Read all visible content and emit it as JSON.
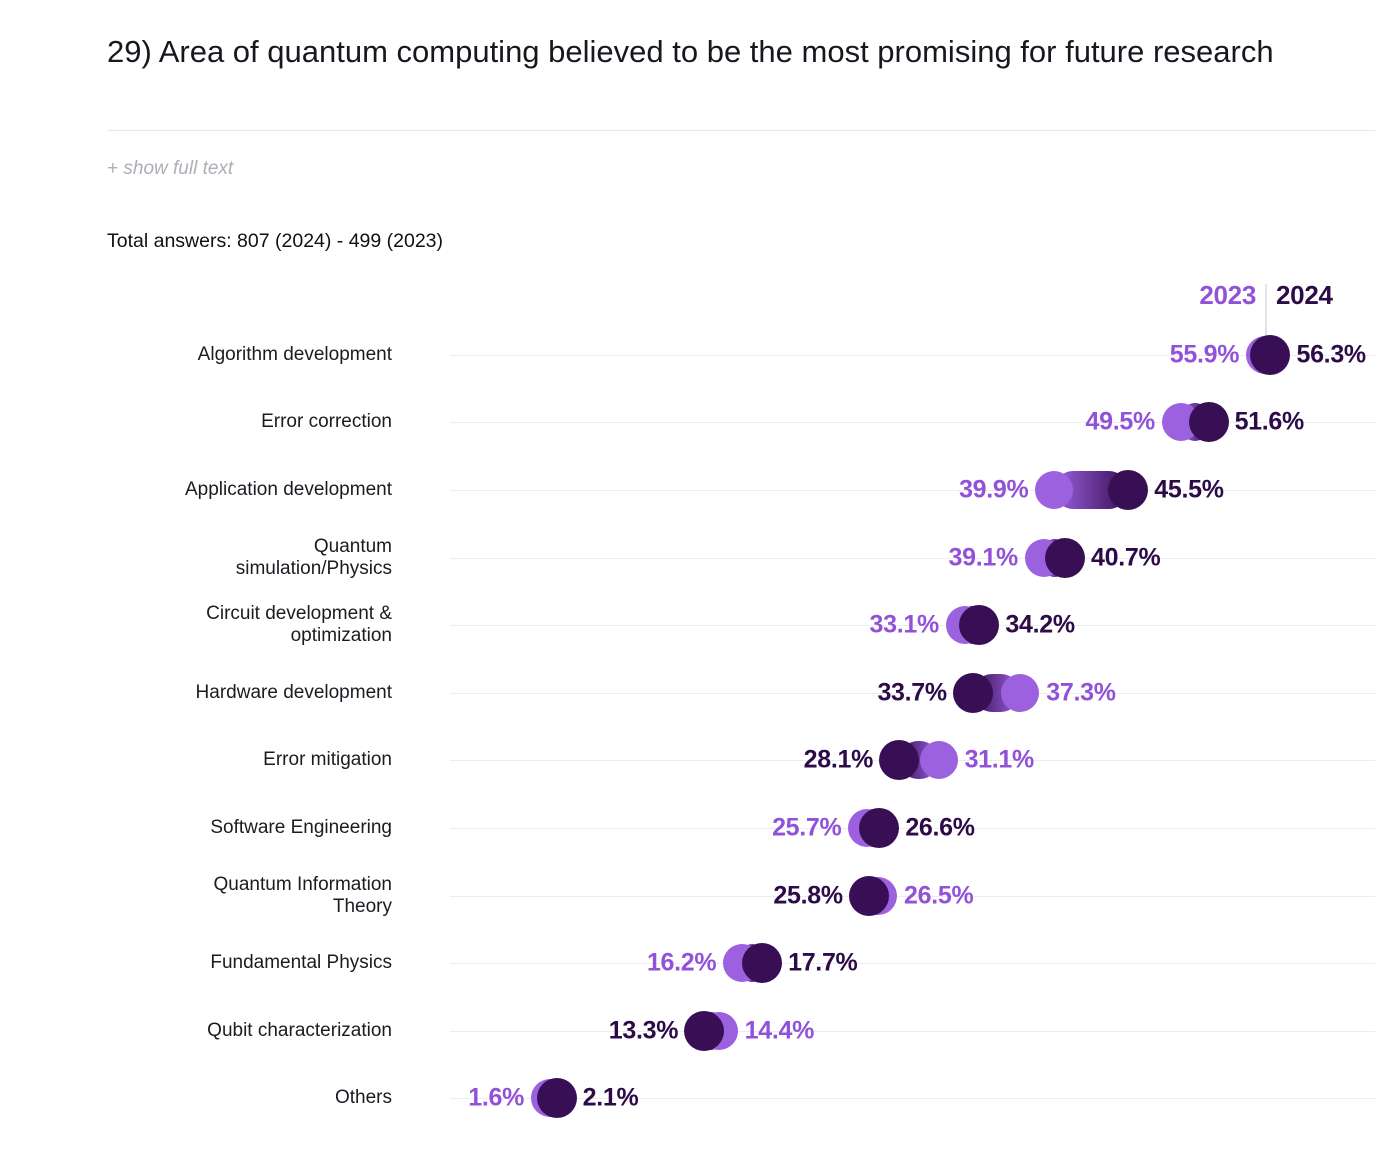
{
  "header": {
    "title": "29) Area of quantum computing believed to be the most promising for future research",
    "show_full_text_label": "+ show full text",
    "total_answers": "Total answers: 807 (2024) - 499 (2023)"
  },
  "legend": {
    "label_2023": "2023",
    "label_2024": "2024"
  },
  "colors": {
    "dot_2023": "#9B61DF",
    "dot_2024": "#380F55",
    "text_2023": "#9152D9",
    "text_2024": "#2D0A48",
    "gridline": "#EDEDF1",
    "legend_divider": "#E3E3EA",
    "header_divider": "#E8E8EA",
    "title_text": "#17171E",
    "category_text": "#1B1B22",
    "muted_text": "#AEAEB6"
  },
  "chart_data": {
    "type": "dumbbell",
    "title": "29) Area of quantum computing believed to be the most promising for future research",
    "unit": "%",
    "xlim": [
      0,
      60
    ],
    "grid": true,
    "legend_position": "top-right",
    "value_label_format": "0.0%",
    "categories": [
      "Algorithm development",
      "Error correction",
      "Application development",
      "Quantum\nsimulation/Physics",
      "Circuit development &\noptimization",
      "Hardware development",
      "Error mitigation",
      "Software Engineering",
      "Quantum Information\nTheory",
      "Fundamental Physics",
      "Qubit characterization",
      "Others"
    ],
    "series": [
      {
        "name": "2023",
        "values": [
          55.9,
          49.5,
          39.9,
          39.1,
          33.1,
          37.3,
          31.1,
          25.7,
          26.5,
          16.2,
          14.4,
          1.6
        ]
      },
      {
        "name": "2024",
        "values": [
          56.3,
          51.6,
          45.5,
          40.7,
          34.2,
          33.7,
          28.1,
          26.6,
          25.8,
          17.7,
          13.3,
          2.1
        ]
      }
    ]
  }
}
